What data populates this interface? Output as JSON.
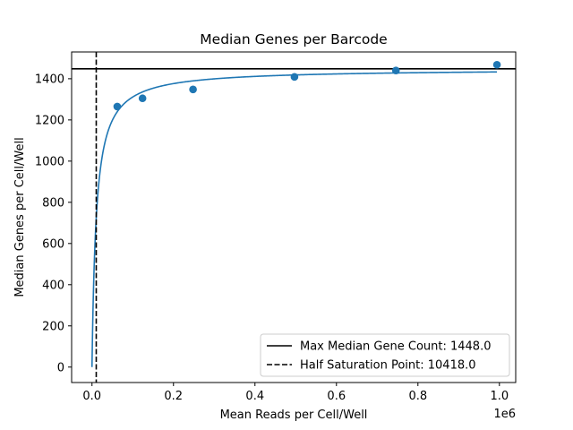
{
  "chart_data": {
    "type": "scatter",
    "title": "Median Genes per Barcode",
    "xlabel": "Mean Reads per Cell/Well",
    "ylabel": "Median Genes per Cell/Well",
    "x_offset_label": "1e6",
    "xlim": [
      -50000,
      1040000
    ],
    "ylim": [
      -75,
      1530
    ],
    "x_ticks": [
      0,
      200000,
      400000,
      600000,
      800000,
      1000000
    ],
    "x_tick_labels": [
      "0.0",
      "0.2",
      "0.4",
      "0.6",
      "0.8",
      "1.0"
    ],
    "y_ticks": [
      0,
      200,
      400,
      600,
      800,
      1000,
      1200,
      1400
    ],
    "y_tick_labels": [
      "0",
      "200",
      "400",
      "600",
      "800",
      "1000",
      "1200",
      "1400"
    ],
    "grid": false,
    "legend_position": "lower-right",
    "points": {
      "color": "#1f77b4",
      "x": [
        62000,
        124000,
        248000,
        497000,
        746000,
        994000
      ],
      "y": [
        1265,
        1305,
        1348,
        1409,
        1440,
        1468
      ]
    },
    "fit_curve": {
      "color": "#1f77b4",
      "model": "y = Vmax * x / (K + x)",
      "Vmax": 1448.0,
      "K": 10418.0,
      "x_range": [
        0,
        994000
      ]
    },
    "reference_lines": [
      {
        "orientation": "horizontal",
        "value": 1448.0,
        "style": "solid",
        "color": "#000000",
        "label": "Max Median Gene Count: 1448.0"
      },
      {
        "orientation": "vertical",
        "value": 10418.0,
        "style": "dashed",
        "color": "#000000",
        "label": "Half Saturation Point: 10418.0"
      }
    ]
  }
}
